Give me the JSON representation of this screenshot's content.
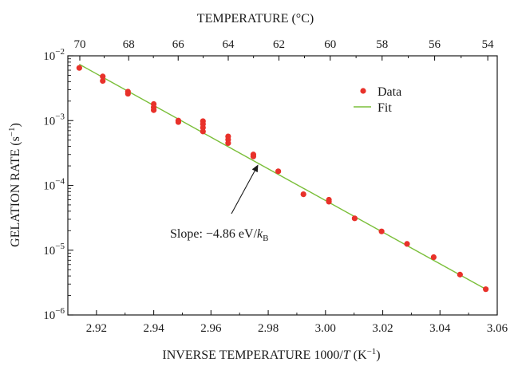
{
  "chart_data": {
    "type": "scatter",
    "x_axis": {
      "label_prefix": "INVERSE TEMPERATURE  1000/",
      "label_var": "T",
      "label_unit": " (K",
      "label_unit_sup": "−1",
      "label_close": ")",
      "range": [
        2.91,
        3.06
      ],
      "ticks": [
        2.92,
        2.94,
        2.96,
        2.98,
        3.0,
        3.02,
        3.04,
        3.06
      ],
      "tick_labels": [
        "2.92",
        "2.94",
        "2.96",
        "2.98",
        "3.00",
        "3.02",
        "3.04",
        "3.06"
      ]
    },
    "top_axis": {
      "label": "TEMPERATURE (°C)",
      "ticks_celsius": [
        70,
        68,
        66,
        64,
        62,
        60,
        58,
        56,
        54
      ],
      "tick_labels": [
        "70",
        "68",
        "66",
        "64",
        "62",
        "60",
        "58",
        "56",
        "54"
      ]
    },
    "y_axis": {
      "label": "GELATION RATE (s",
      "label_sup": "−1",
      "label_close": ")",
      "scale": "log",
      "range": [
        1e-06,
        0.01
      ],
      "ticks": [
        {
          "value": 1e-06,
          "base": "10",
          "exp": "−6"
        },
        {
          "value": 1e-05,
          "base": "10",
          "exp": "−5"
        },
        {
          "value": 0.0001,
          "base": "10",
          "exp": "−4"
        },
        {
          "value": 0.001,
          "base": "10",
          "exp": "−3"
        },
        {
          "value": 0.01,
          "base": "10",
          "exp": "−2"
        }
      ]
    },
    "series": [
      {
        "name": "Data",
        "kind": "scatter",
        "color": "#e8312a",
        "points": [
          [
            2.914,
            0.0065
          ],
          [
            2.9222,
            0.0048
          ],
          [
            2.9222,
            0.0041
          ],
          [
            2.931,
            0.0028
          ],
          [
            2.931,
            0.0026
          ],
          [
            2.94,
            0.0018
          ],
          [
            2.94,
            0.0016
          ],
          [
            2.94,
            0.00145
          ],
          [
            2.9486,
            0.001
          ],
          [
            2.9486,
            0.00095
          ],
          [
            2.9572,
            0.00098
          ],
          [
            2.9572,
            0.00088
          ],
          [
            2.9572,
            0.00078
          ],
          [
            2.9572,
            0.00068
          ],
          [
            2.966,
            0.00057
          ],
          [
            2.966,
            0.00051
          ],
          [
            2.966,
            0.00045
          ],
          [
            2.9748,
            0.0003
          ],
          [
            2.9748,
            0.00028
          ],
          [
            2.9835,
            0.000165
          ],
          [
            2.9923,
            7.3e-05
          ],
          [
            3.0012,
            6e-05
          ],
          [
            3.0012,
            5.6e-05
          ],
          [
            3.0102,
            3.1e-05
          ],
          [
            3.0196,
            1.95e-05
          ],
          [
            3.0285,
            1.25e-05
          ],
          [
            3.0378,
            7.8e-06
          ],
          [
            3.047,
            4.2e-06
          ],
          [
            3.056,
            2.5e-06
          ]
        ]
      },
      {
        "name": "Fit",
        "kind": "line",
        "color": "#7bbf3a",
        "points": [
          [
            2.914,
            0.0074
          ],
          [
            3.056,
            2.5e-06
          ]
        ]
      }
    ],
    "annotations": [
      {
        "text_prefix": "Slope: −4.86 eV/",
        "text_var": "k",
        "text_sub": "B",
        "arrow_to": [
          2.9765,
          0.00021
        ]
      }
    ],
    "legend_placement": "top-right",
    "grid": false
  }
}
